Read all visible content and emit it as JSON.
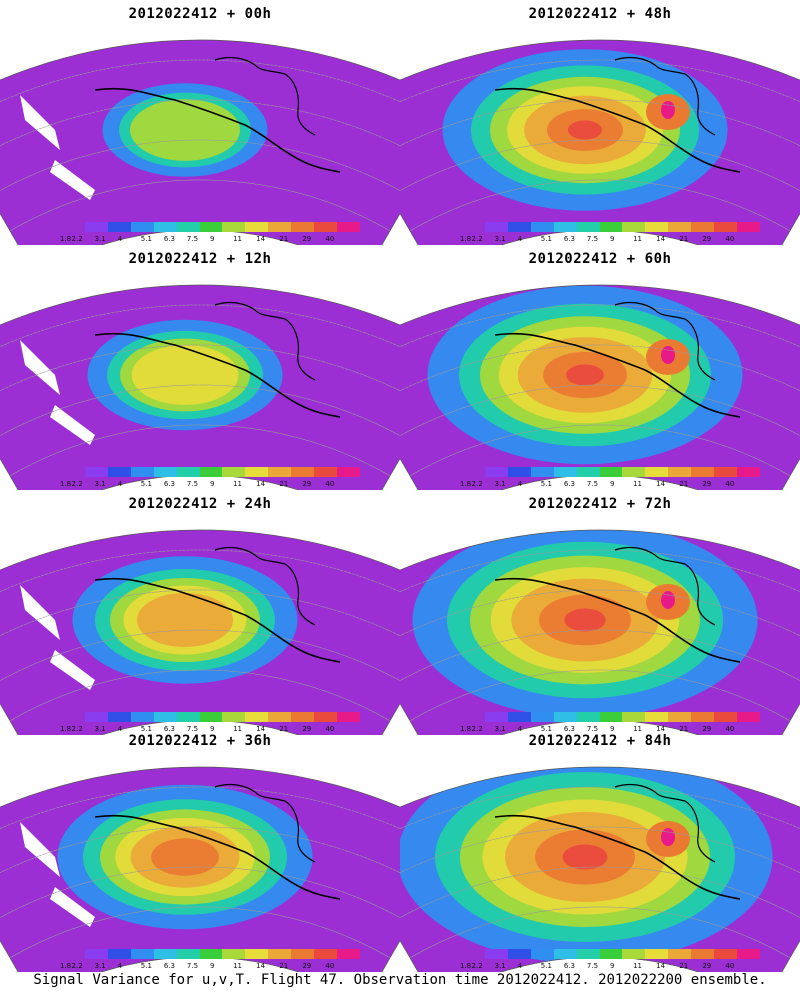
{
  "panels": [
    {
      "title": "2012022412 + 00h"
    },
    {
      "title": "2012022412 + 48h"
    },
    {
      "title": "2012022412 + 12h"
    },
    {
      "title": "2012022412 + 60h"
    },
    {
      "title": "2012022412 + 24h"
    },
    {
      "title": "2012022412 + 72h"
    },
    {
      "title": "2012022412 + 36h"
    },
    {
      "title": "2012022412 + 84h"
    }
  ],
  "colorbar": {
    "colors": [
      "#9b2fd4",
      "#8a3cf0",
      "#2f4fe6",
      "#2f8ef0",
      "#2fbfe6",
      "#22cfa8",
      "#3ace3a",
      "#a8d83a",
      "#e6dc3a",
      "#eaa838",
      "#ea7a32",
      "#ea4a3e",
      "#e81a8a"
    ],
    "labels": [
      "1.8",
      "2.2",
      "3.1",
      "4",
      "5.1",
      "6.3",
      "7.5",
      "9",
      "11",
      "14",
      "21",
      "29",
      "40"
    ]
  },
  "caption": "Signal Variance for u,v,T. Flight 47. Observation time 2012022412. 2012022200 ensemble.",
  "colors": {
    "low": "#9b2fd4",
    "mid": "#2fbfe6",
    "high": "#ea7a32",
    "peak": "#e81a8a",
    "land_outline": "#000000",
    "grid": "#9a9a9a"
  }
}
